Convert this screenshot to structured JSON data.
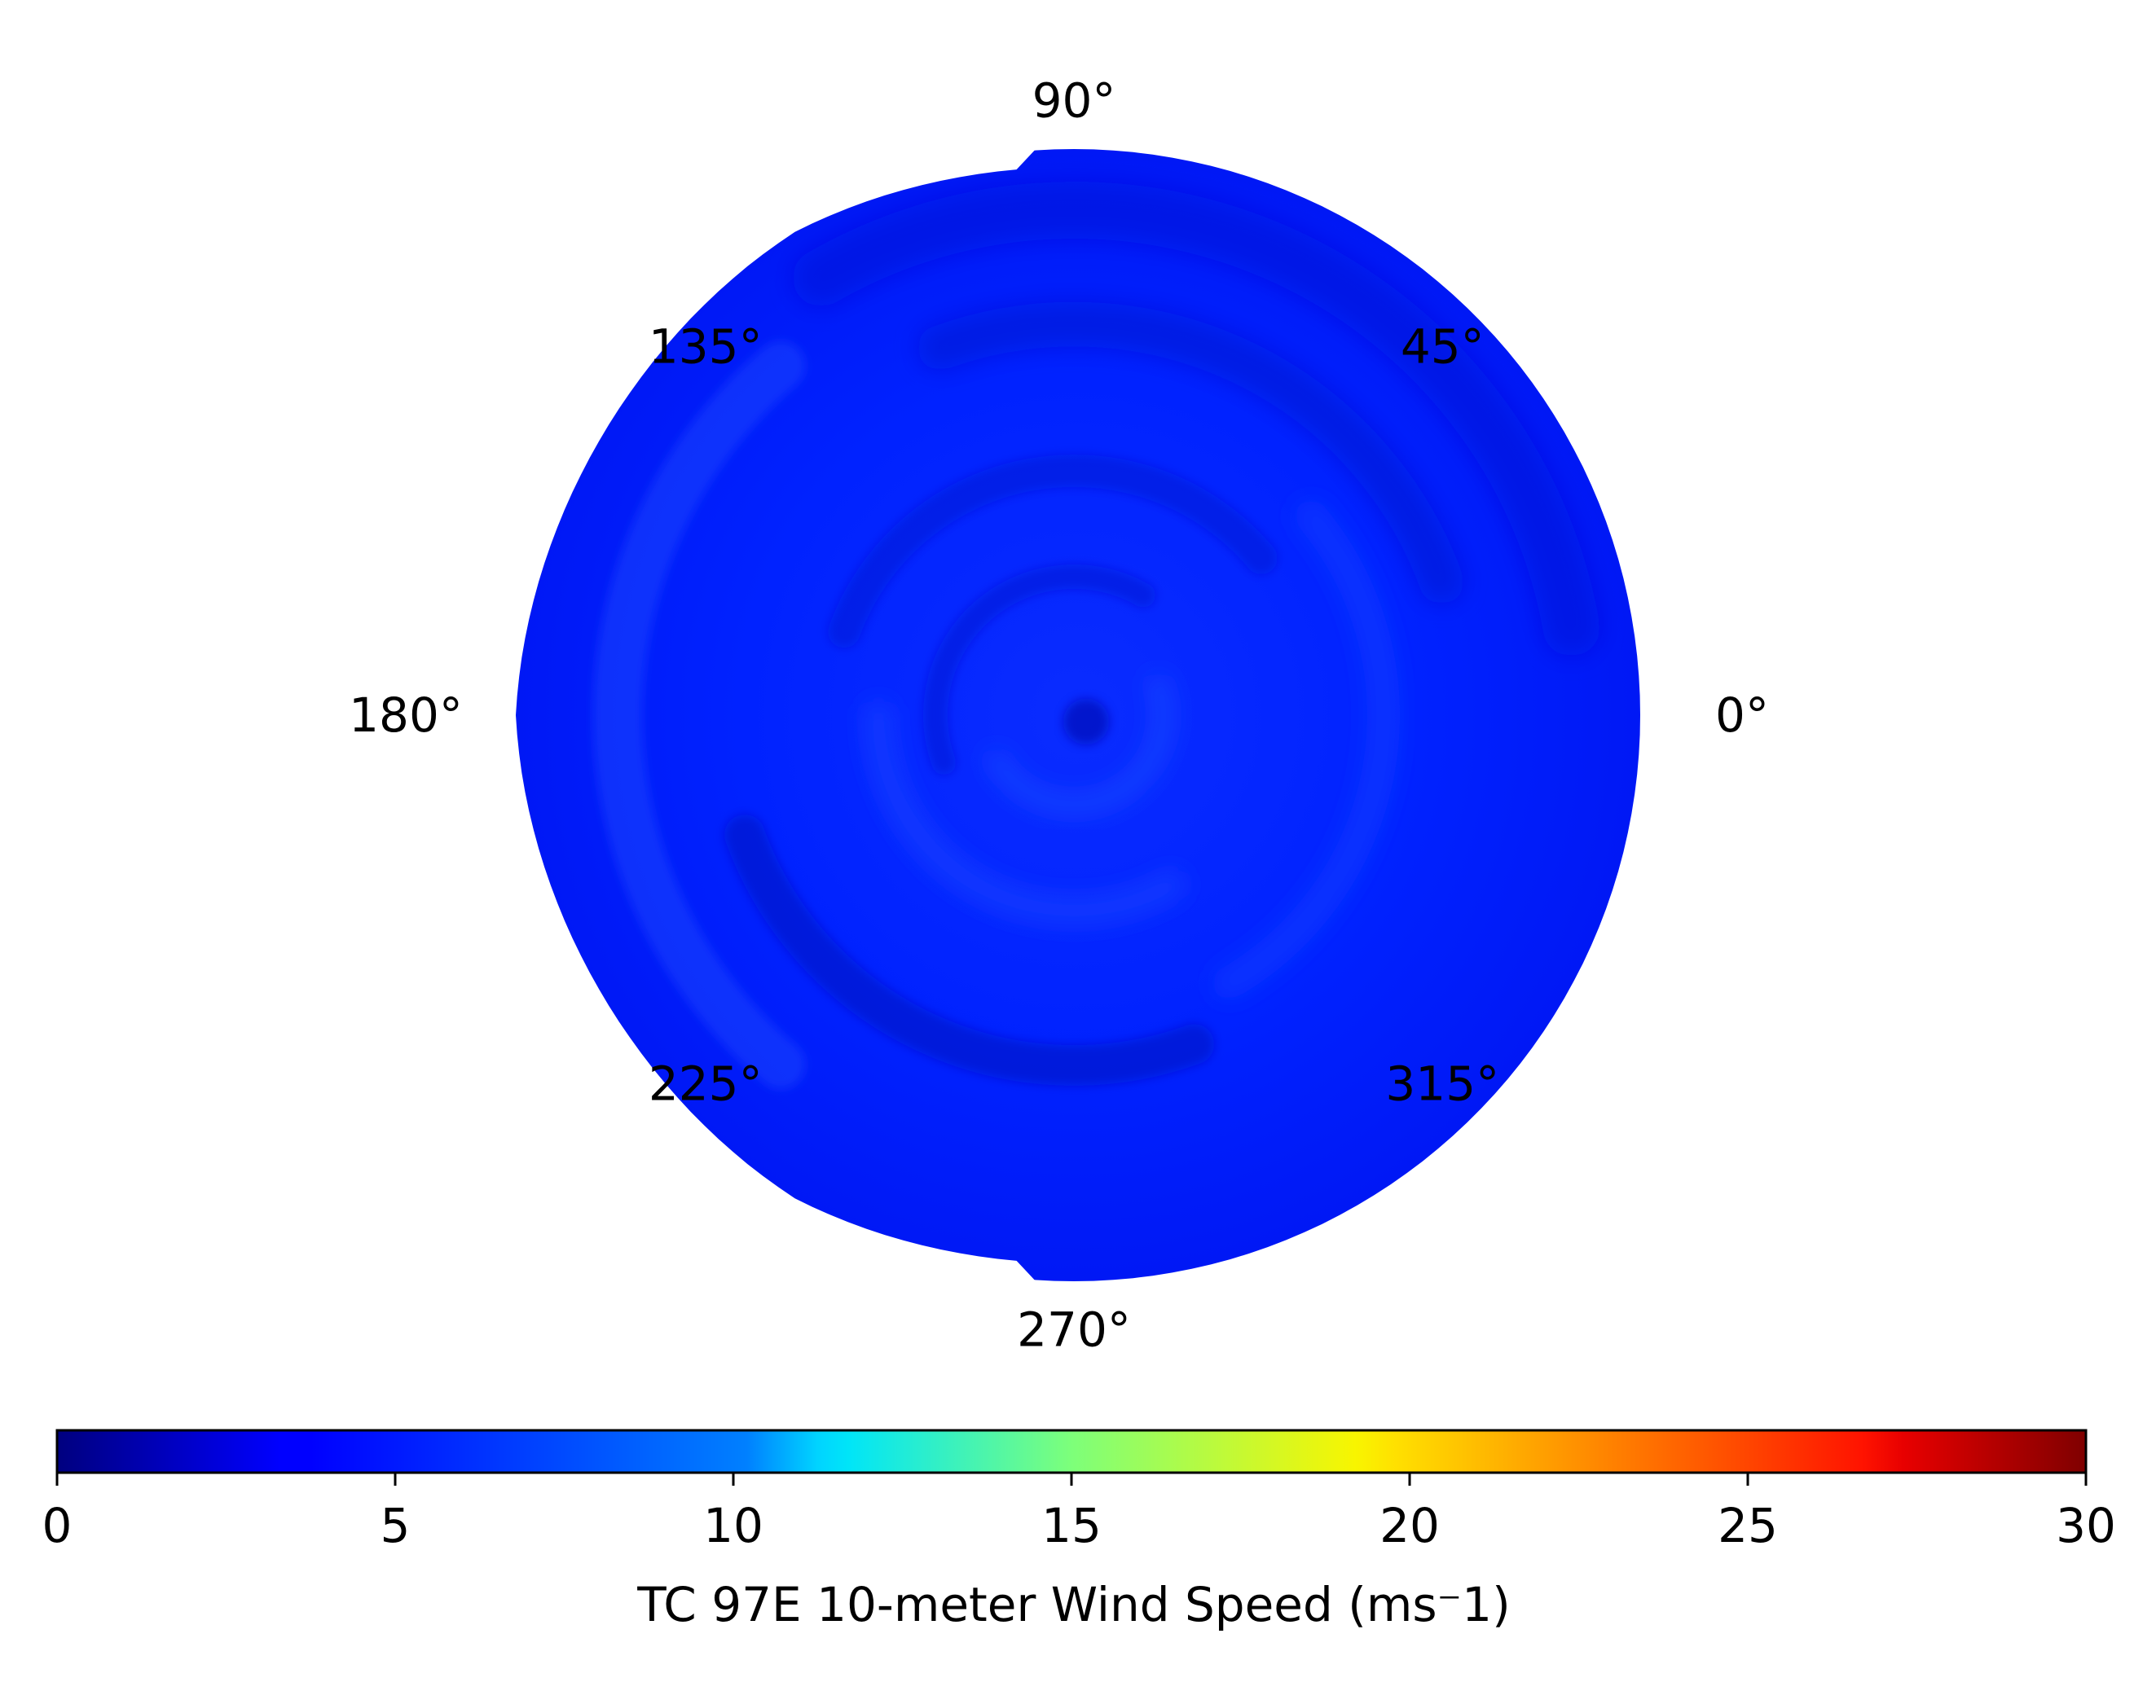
{
  "chart_data": {
    "type": "heatmap",
    "projection": "polar",
    "angular_ticks": [
      "0°",
      "45°",
      "90°",
      "135°",
      "180°",
      "225°",
      "270°",
      "315°"
    ],
    "angular_tick_values": [
      0,
      45,
      90,
      135,
      180,
      225,
      270,
      315
    ],
    "grid": false,
    "colormap": "jet",
    "value_range": [
      0,
      30
    ],
    "typical_value_range": [
      2,
      8
    ],
    "colorbar": {
      "orientation": "horizontal",
      "placement": "bottom",
      "ticks": [
        "0",
        "5",
        "10",
        "15",
        "20",
        "25",
        "30"
      ],
      "tick_values": [
        0,
        5,
        10,
        15,
        20,
        25,
        30
      ],
      "label": "TC 97E 10-meter Wind Speed (ms⁻1)"
    }
  }
}
